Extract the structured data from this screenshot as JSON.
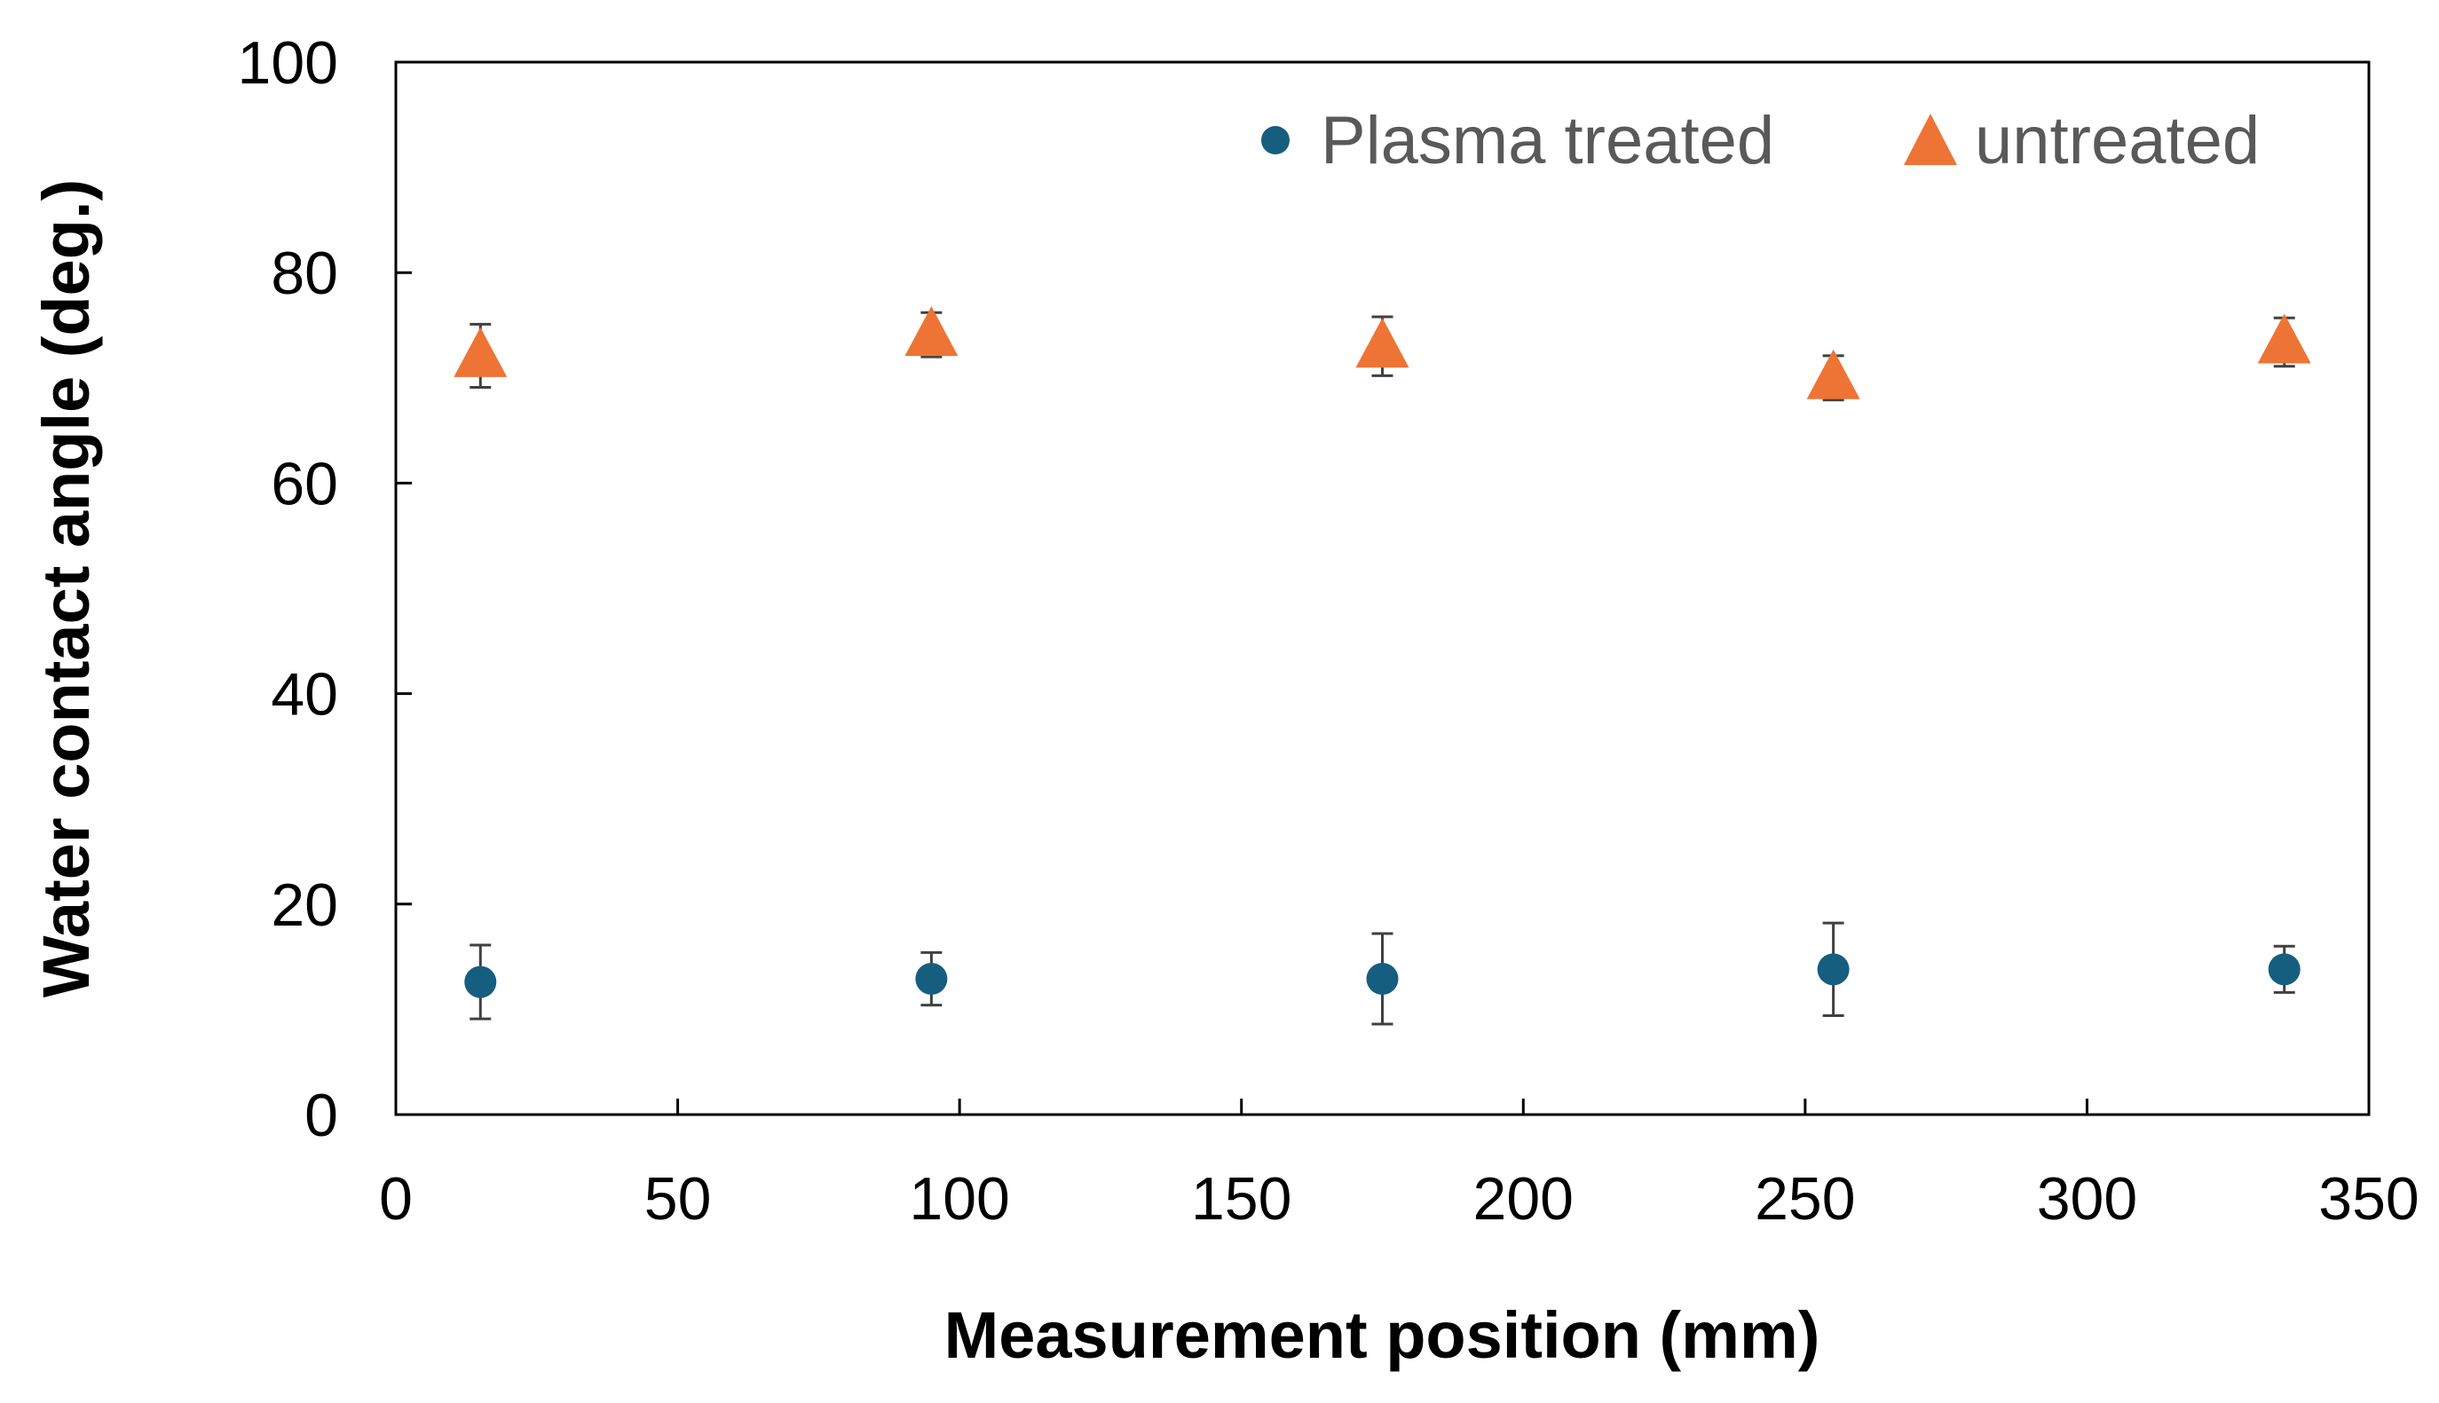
{
  "chart_data": {
    "type": "scatter",
    "xlabel": "Measurement position (mm)",
    "ylabel": "Water contact angle (deg.)",
    "xlim": [
      0,
      350
    ],
    "ylim": [
      0,
      100
    ],
    "xticks": [
      "0",
      "50",
      "100",
      "150",
      "200",
      "250",
      "300",
      "350"
    ],
    "yticks": [
      "0",
      "20",
      "40",
      "60",
      "80",
      "100"
    ],
    "grid": false,
    "legend": "top-right",
    "series": [
      {
        "name": "Plasma treated",
        "marker": "circle",
        "color": "#155e80",
        "x": [
          15,
          95,
          175,
          255,
          335
        ],
        "y": [
          12.6,
          12.9,
          12.9,
          13.8,
          13.8
        ],
        "error": [
          3.5,
          2.5,
          4.3,
          4.4,
          2.2
        ]
      },
      {
        "name": "untreated",
        "marker": "triangle",
        "color": "#ed7434",
        "x": [
          15,
          95,
          175,
          255,
          335
        ],
        "y": [
          72.1,
          74.1,
          73.0,
          70.0,
          73.4
        ],
        "error": [
          3.0,
          2.1,
          2.8,
          2.1,
          2.3
        ]
      }
    ]
  }
}
